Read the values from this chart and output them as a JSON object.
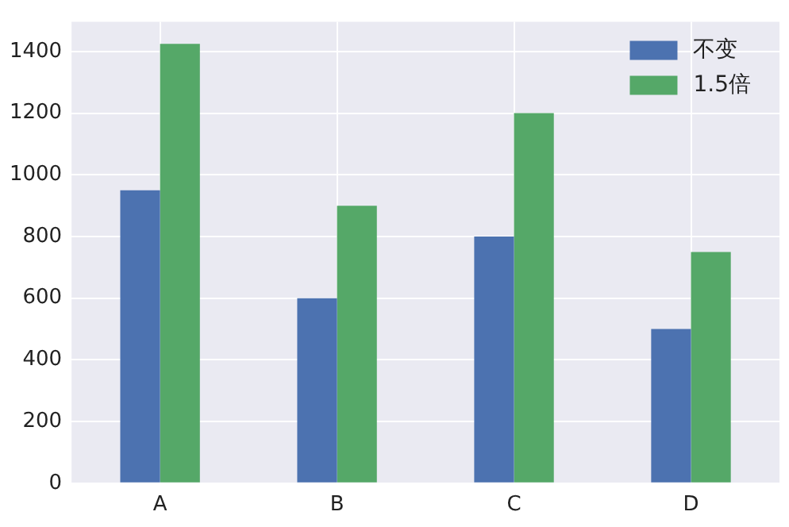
{
  "chart_data": {
    "type": "bar",
    "categories": [
      "A",
      "B",
      "C",
      "D"
    ],
    "series": [
      {
        "name": "不变",
        "color": "#4c72b0",
        "values": [
          950,
          600,
          800,
          500
        ]
      },
      {
        "name": "1.5倍",
        "color": "#55a868",
        "values": [
          1425,
          900,
          1200,
          750
        ]
      }
    ],
    "ylim": [
      0,
      1496
    ],
    "yticks": [
      0,
      200,
      400,
      600,
      800,
      1000,
      1200,
      1400
    ],
    "grid": true,
    "legend": "top right"
  }
}
